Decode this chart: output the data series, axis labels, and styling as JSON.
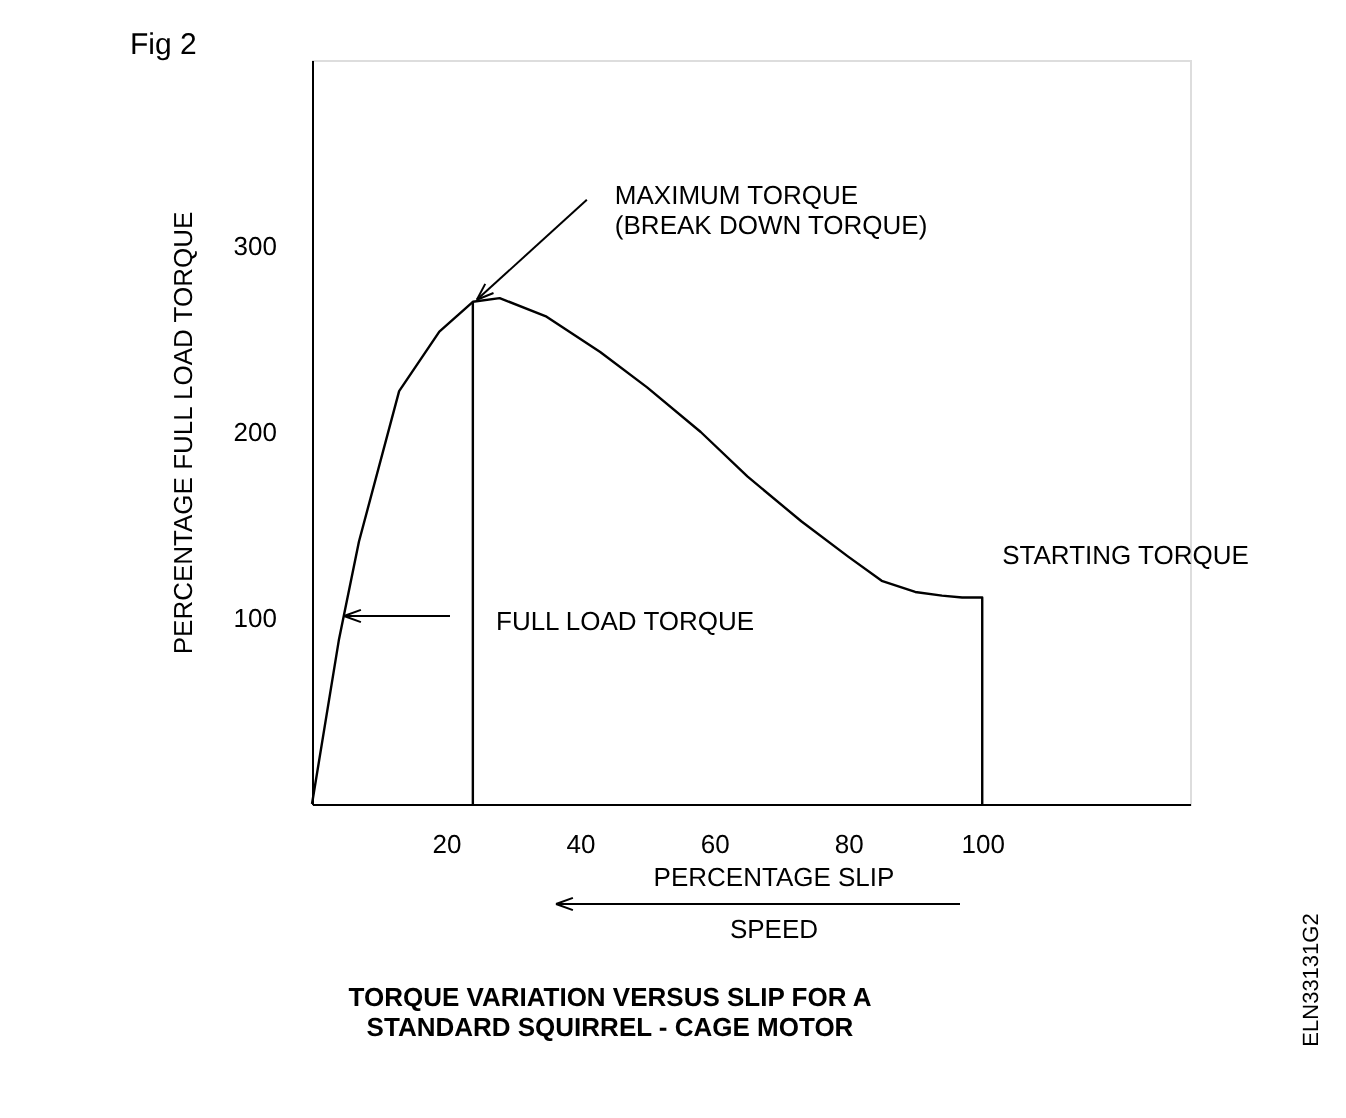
{
  "chart_data": {
    "type": "line",
    "title": "TORQUE VARIATION VERSUS SLIP FOR A\nSTANDARD SQUIRREL - CAGE MOTOR",
    "ylabel": "PERCENTAGE FULL LOAD TORQUE",
    "xlim": [
      0,
      131
    ],
    "ylim": [
      0,
      400
    ],
    "xticks": [
      20,
      40,
      60,
      80,
      100
    ],
    "yticks": [
      100,
      200,
      300
    ],
    "grid": false,
    "series": [
      {
        "color": "#000000",
        "x": [
          0,
          4,
          7,
          13,
          19,
          24,
          28,
          35,
          43,
          50,
          58,
          65,
          73,
          80,
          85,
          90,
          94,
          97,
          100,
          100
        ],
        "values": [
          0,
          88,
          141,
          222,
          254,
          270,
          272,
          262,
          243,
          224,
          200,
          176,
          152,
          133,
          120,
          114,
          112,
          111,
          111,
          0
        ]
      },
      {
        "color": "#000000",
        "x": [
          24,
          24
        ],
        "values": [
          0,
          270
        ]
      }
    ],
    "annotations": [
      "Fig 2",
      "PERCENTAGE SLIP",
      "SPEED",
      "ELN33131G2",
      "FULL LOAD TORQUE",
      {
        "text": "MAXIMUM TORQUE\n(BREAK DOWN TORQUE)",
        "x": 24,
        "y": 270
      },
      {
        "text": "STARTING TORQUE",
        "x": 100,
        "y": 111
      }
    ]
  }
}
